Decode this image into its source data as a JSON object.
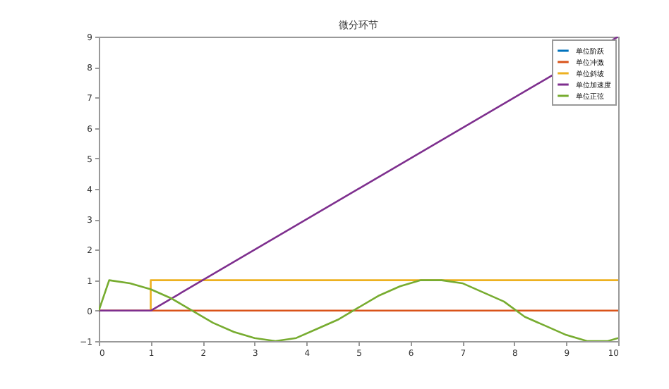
{
  "chart_data": {
    "type": "line",
    "title": "微分环节",
    "xlim": [
      0,
      10
    ],
    "ylim": [
      -1,
      9
    ],
    "xticks": [
      0,
      1,
      2,
      3,
      4,
      5,
      6,
      7,
      8,
      9,
      10
    ],
    "yticks": [
      -1,
      0,
      1,
      2,
      3,
      4,
      5,
      6,
      7,
      8,
      9
    ],
    "grid": false,
    "legend": "top right",
    "line_style": "solid",
    "marker": "none",
    "series": [
      {
        "name": "单位阶跃",
        "color": "#0072bd"
      },
      {
        "name": "单位冲激",
        "color": "#d95319",
        "x": [
          0,
          10
        ],
        "values": [
          0,
          0
        ]
      },
      {
        "name": "单位斜坡",
        "color": "#edb120",
        "x": [
          1,
          1,
          10
        ],
        "values": [
          0,
          1,
          1
        ]
      },
      {
        "name": "单位加速度",
        "color": "#7e2f8e",
        "x": [
          0,
          1,
          10
        ],
        "values": [
          0,
          0,
          9
        ]
      },
      {
        "name": "单位正弦",
        "color": "#77ac30",
        "x": [
          0,
          0.2,
          0.6,
          1,
          1.4,
          1.8,
          2.2,
          2.6,
          3,
          3.4,
          3.8,
          4.2,
          4.6,
          5,
          5.4,
          5.8,
          6.2,
          6.6,
          7,
          7.4,
          7.8,
          8.2,
          8.6,
          9,
          9.4,
          9.8,
          10
        ],
        "values": [
          0,
          1,
          0.9,
          0.7,
          0.4,
          0,
          -0.4,
          -0.7,
          -0.9,
          -1,
          -0.9,
          -0.6,
          -0.3,
          0.1,
          0.5,
          0.8,
          1,
          1,
          0.9,
          0.6,
          0.3,
          -0.2,
          -0.5,
          -0.8,
          -1,
          -1,
          -0.9
        ]
      }
    ]
  }
}
